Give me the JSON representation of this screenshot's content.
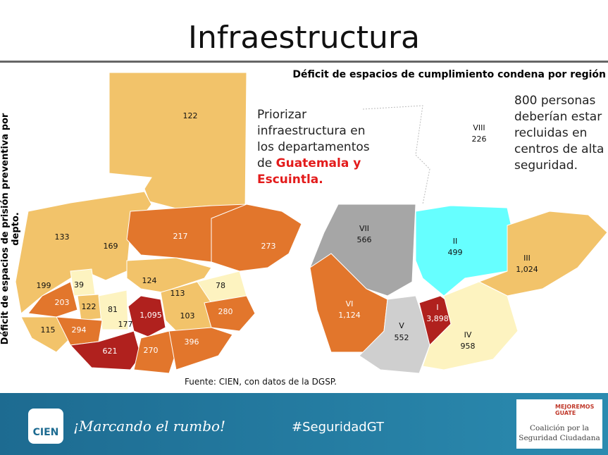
{
  "title": "Infraestructura",
  "left_map": {
    "axis_label": "Déficit de espacios de prisión preventiva por depto.",
    "departments": [
      "122",
      "133",
      "169",
      "217",
      "273",
      "199",
      "39",
      "124",
      "113",
      "78",
      "203",
      "122",
      "81",
      "177",
      "1,095",
      "103",
      "280",
      "115",
      "294",
      "621",
      "270",
      "396"
    ]
  },
  "note": {
    "text": "Priorizar infraestructura en los departamentos de ",
    "highlight": "Guatemala y Escuintla."
  },
  "right_map": {
    "title": "Déficit de espacios de cumplimiento condena por región",
    "regions": [
      {
        "name": "VIII",
        "value": "226"
      },
      {
        "name": "VII",
        "value": "566"
      },
      {
        "name": "II",
        "value": "499"
      },
      {
        "name": "III",
        "value": "1,024"
      },
      {
        "name": "VI",
        "value": "1,124"
      },
      {
        "name": "I",
        "value": "3,898"
      },
      {
        "name": "V",
        "value": "552"
      },
      {
        "name": "IV",
        "value": "958"
      }
    ]
  },
  "callout": "800 personas deberían estar recluidas en centros de alta seguridad.",
  "source": "Fuente: CIEN, con datos de la DGSP.",
  "footer": {
    "logo": "CIEN",
    "tagline": "¡Marcando el rumbo!",
    "hashtag": "#SeguridadGT",
    "partner_badge": "MEJOREMOS GUATE",
    "partner": "Coalición por la Seguridad Ciudadana"
  }
}
